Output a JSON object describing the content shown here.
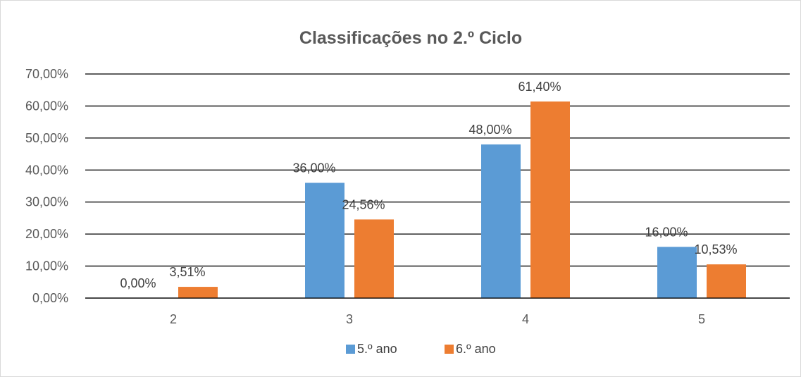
{
  "chart_data": {
    "type": "bar",
    "title": "Classificações no 2.º Ciclo",
    "categories": [
      "2",
      "3",
      "4",
      "5"
    ],
    "series": [
      {
        "name": "5.º ano",
        "color": "#5b9bd5",
        "values": [
          0.0,
          36.0,
          48.0,
          16.0
        ],
        "labels": [
          "0,00%",
          "36,00%",
          "48,00%",
          "16,00%"
        ]
      },
      {
        "name": "6.º ano",
        "color": "#ed7d31",
        "values": [
          3.51,
          24.56,
          61.4,
          10.53
        ],
        "labels": [
          "3,51%",
          "24,56%",
          "61,40%",
          "10,53%"
        ]
      }
    ],
    "ylim": [
      0,
      70
    ],
    "yticks": [
      0,
      10,
      20,
      30,
      40,
      50,
      60,
      70
    ],
    "ytick_labels": [
      "0,00%",
      "10,00%",
      "20,00%",
      "30,00%",
      "40,00%",
      "50,00%",
      "60,00%",
      "70,00%"
    ],
    "xlabel": "",
    "ylabel": "",
    "grid": true,
    "legend_position": "bottom"
  }
}
